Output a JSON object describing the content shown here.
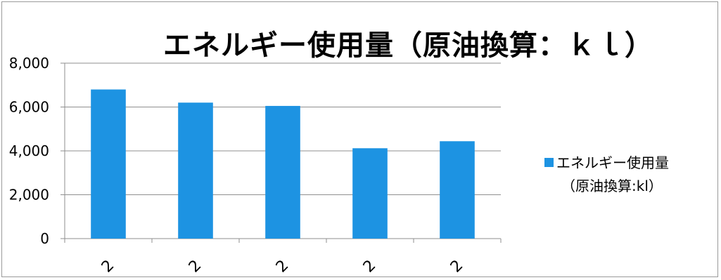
{
  "colors": {
    "bar": "#1d93e2",
    "grid": "#8f8f8f",
    "axis": "#8f8f8f"
  },
  "chart_data": {
    "type": "bar",
    "title": "エネルギー使用量（原油換算：ｋｌ）",
    "categories": [
      "2",
      "2",
      "2",
      "2",
      "2"
    ],
    "series": [
      {
        "name_line1": "エネルギー使用量",
        "name_line2": "（原油換算:kl）",
        "values": [
          6800,
          6200,
          6050,
          4120,
          4440
        ]
      }
    ],
    "ylim": [
      0,
      8000
    ],
    "yticks": [
      0,
      2000,
      4000,
      6000,
      8000
    ],
    "ytick_labels": [
      "0",
      "2,000",
      "4,000",
      "6,000",
      "8,000"
    ],
    "grid": true,
    "legend_position": "right"
  }
}
